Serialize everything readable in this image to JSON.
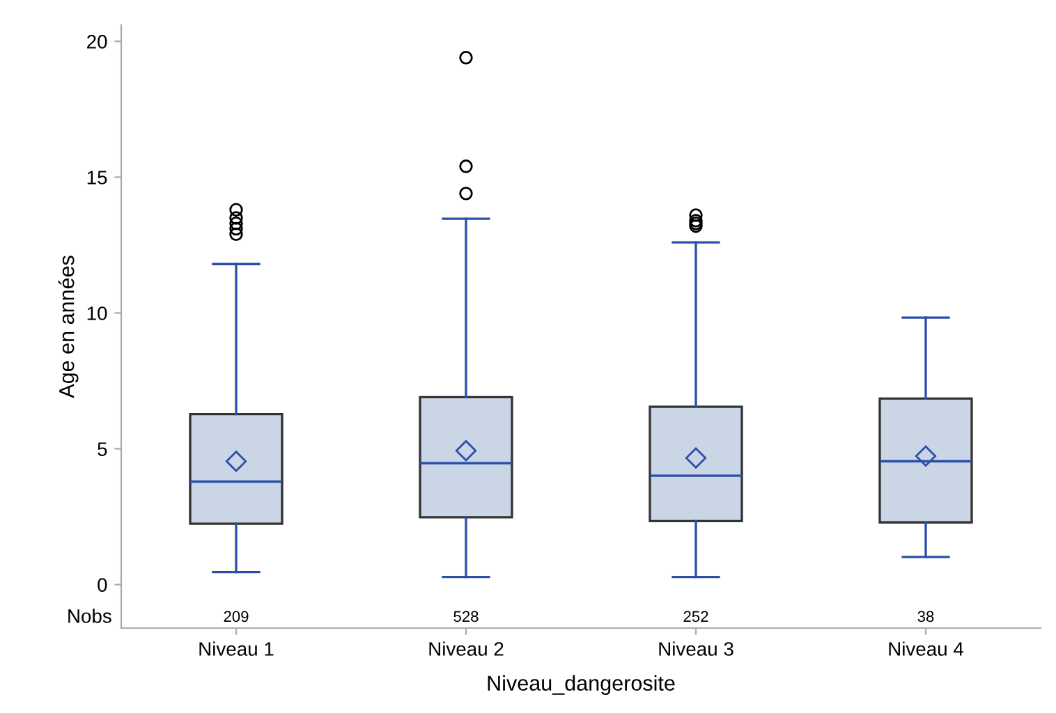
{
  "chart_data": {
    "type": "box",
    "xlabel": "Niveau_dangerosite",
    "ylabel": "Age en années",
    "categories": [
      "Niveau 1",
      "Niveau 2",
      "Niveau 3",
      "Niveau 4"
    ],
    "series": [
      {
        "color": "#cad5e5",
        "boxes": [
          {
            "low": 0.46,
            "q1": 2.24,
            "median": 3.79,
            "q3": 6.28,
            "high": 11.8,
            "mean": 4.54,
            "outliers": [
              12.9,
              13.1,
              13.3,
              13.5,
              13.8
            ]
          },
          {
            "low": 0.28,
            "q1": 2.48,
            "median": 4.47,
            "q3": 6.9,
            "high": 13.47,
            "mean": 4.93,
            "outliers": [
              14.4,
              15.4,
              19.4
            ]
          },
          {
            "low": 0.28,
            "q1": 2.34,
            "median": 4.01,
            "q3": 6.55,
            "high": 12.6,
            "mean": 4.66,
            "outliers": [
              13.2,
              13.3,
              13.4,
              13.6
            ]
          },
          {
            "low": 1.02,
            "q1": 2.29,
            "median": 4.54,
            "q3": 6.85,
            "high": 9.83,
            "mean": 4.73
          }
        ]
      }
    ],
    "ylim": [
      -1.6,
      20.6
    ],
    "yticks": [
      0,
      5,
      10,
      15,
      20
    ],
    "grid": false,
    "legend": false,
    "annotations": [
      "Nobs",
      "209",
      "528",
      "252",
      "38"
    ]
  }
}
